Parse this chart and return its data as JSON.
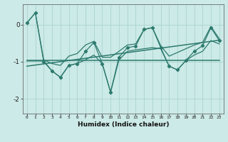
{
  "xlabel": "Humidex (Indice chaleur)",
  "bg_color": "#cceae7",
  "grid_color": "#aad4d0",
  "line_color": "#2d7a6e",
  "x": [
    0,
    1,
    2,
    3,
    4,
    5,
    6,
    7,
    8,
    9,
    10,
    11,
    12,
    13,
    14,
    15,
    16,
    17,
    18,
    19,
    20,
    21,
    22,
    23
  ],
  "y_main": [
    0.05,
    0.32,
    -1.0,
    -1.25,
    -1.42,
    -1.1,
    -1.05,
    -0.72,
    -0.48,
    -1.05,
    -1.82,
    -0.88,
    -0.62,
    -0.58,
    -0.13,
    -0.08,
    -0.62,
    -1.12,
    -1.22,
    -0.97,
    -0.72,
    -0.57,
    -0.08,
    -0.43
  ],
  "y_upper": [
    0.05,
    0.32,
    -0.95,
    -1.05,
    -1.1,
    -0.85,
    -0.78,
    -0.55,
    -0.45,
    -0.88,
    -0.88,
    -0.72,
    -0.55,
    -0.52,
    -0.13,
    -0.08,
    -0.57,
    -0.85,
    -0.75,
    -0.65,
    -0.55,
    -0.48,
    -0.05,
    -0.38
  ],
  "y_lower": [
    -0.98,
    -0.98,
    -0.98,
    -1.25,
    -1.42,
    -1.1,
    -1.05,
    -0.95,
    -0.82,
    -1.05,
    -1.82,
    -0.95,
    -0.72,
    -0.68,
    -0.65,
    -0.62,
    -0.65,
    -1.12,
    -1.22,
    -0.97,
    -0.82,
    -0.72,
    -0.43,
    -0.52
  ],
  "trend1_x": [
    0,
    23
  ],
  "trend1_y": [
    -0.97,
    -0.97
  ],
  "trend2_x": [
    0,
    23
  ],
  "trend2_y": [
    -1.12,
    -0.42
  ],
  "ylim": [
    -2.4,
    0.55
  ],
  "yticks": [
    0,
    -1,
    -2
  ],
  "xlim": [
    -0.5,
    23.5
  ],
  "figsize": [
    3.2,
    2.0
  ],
  "dpi": 100
}
